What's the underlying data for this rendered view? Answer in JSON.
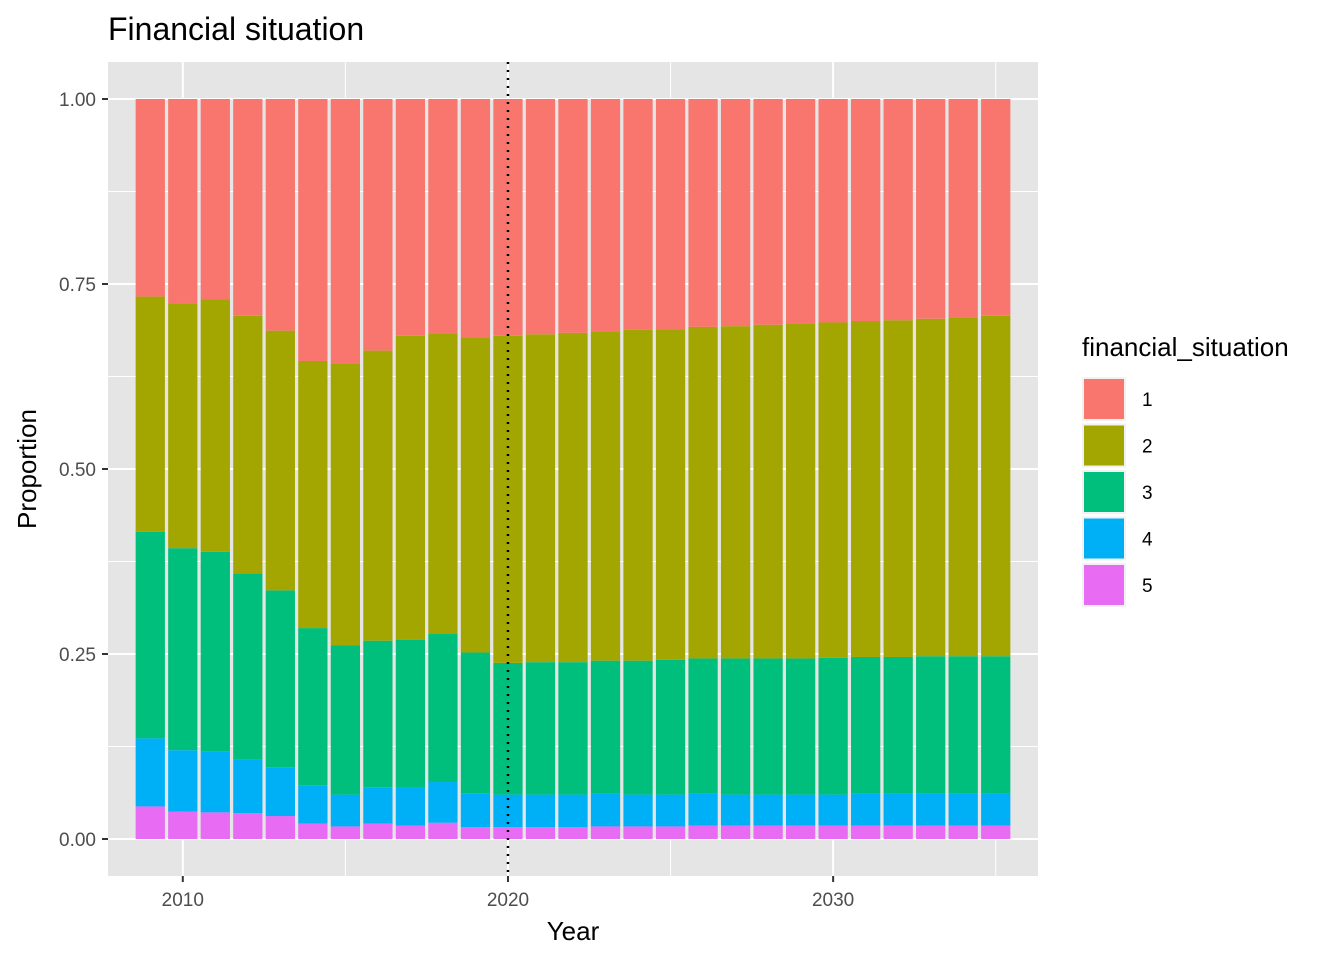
{
  "chart_data": {
    "type": "bar",
    "stacked": "fill",
    "title": "Financial situation",
    "xlabel": "Year",
    "ylabel": "Proportion",
    "xlim": [
      2007.7,
      2036.3
    ],
    "ylim": [
      -0.05,
      1.05
    ],
    "x_ticks": [
      2010,
      2020,
      2030
    ],
    "x_tick_labels": [
      "2010",
      "2020",
      "2030"
    ],
    "y_ticks": [
      0,
      0.25,
      0.5,
      0.75,
      1.0
    ],
    "y_tick_labels": [
      "0.00",
      "0.25",
      "0.50",
      "0.75",
      "1.00"
    ],
    "vline": {
      "x": 2020,
      "style": "dotted",
      "color": "#000000"
    },
    "grid": true,
    "panel_background": "#e5e5e5",
    "legend": {
      "title": "financial_situation",
      "placement": "right"
    },
    "x": [
      2009,
      2010,
      2011,
      2012,
      2013,
      2014,
      2015,
      2016,
      2017,
      2018,
      2019,
      2020,
      2021,
      2022,
      2023,
      2024,
      2025,
      2026,
      2027,
      2028,
      2029,
      2030,
      2031,
      2032,
      2033,
      2034,
      2035
    ],
    "series": [
      {
        "name": "1",
        "color": "#F8766D",
        "values": [
          0.267,
          0.277,
          0.271,
          0.293,
          0.313,
          0.354,
          0.357,
          0.34,
          0.32,
          0.317,
          0.323,
          0.32,
          0.318,
          0.316,
          0.314,
          0.312,
          0.311,
          0.308,
          0.307,
          0.305,
          0.303,
          0.302,
          0.3,
          0.299,
          0.297,
          0.295,
          0.293
        ]
      },
      {
        "name": "2",
        "color": "#A3A500",
        "values": [
          0.318,
          0.33,
          0.341,
          0.348,
          0.351,
          0.361,
          0.381,
          0.392,
          0.411,
          0.406,
          0.425,
          0.442,
          0.443,
          0.445,
          0.445,
          0.447,
          0.447,
          0.448,
          0.449,
          0.451,
          0.453,
          0.453,
          0.454,
          0.455,
          0.456,
          0.458,
          0.46
        ]
      },
      {
        "name": "3",
        "color": "#00BF7D",
        "values": [
          0.279,
          0.273,
          0.27,
          0.251,
          0.239,
          0.213,
          0.202,
          0.198,
          0.2,
          0.2,
          0.19,
          0.178,
          0.179,
          0.179,
          0.18,
          0.181,
          0.182,
          0.183,
          0.184,
          0.184,
          0.184,
          0.185,
          0.185,
          0.185,
          0.186,
          0.186,
          0.186
        ]
      },
      {
        "name": "4",
        "color": "#00B0F6",
        "values": [
          0.092,
          0.083,
          0.082,
          0.073,
          0.066,
          0.051,
          0.043,
          0.049,
          0.051,
          0.055,
          0.046,
          0.044,
          0.044,
          0.044,
          0.044,
          0.043,
          0.043,
          0.043,
          0.042,
          0.042,
          0.042,
          0.042,
          0.043,
          0.043,
          0.043,
          0.043,
          0.043
        ]
      },
      {
        "name": "5",
        "color": "#E76BF3",
        "values": [
          0.044,
          0.037,
          0.036,
          0.035,
          0.031,
          0.021,
          0.017,
          0.021,
          0.018,
          0.022,
          0.016,
          0.016,
          0.016,
          0.016,
          0.017,
          0.017,
          0.017,
          0.018,
          0.018,
          0.018,
          0.018,
          0.018,
          0.018,
          0.018,
          0.018,
          0.018,
          0.018
        ]
      }
    ]
  }
}
